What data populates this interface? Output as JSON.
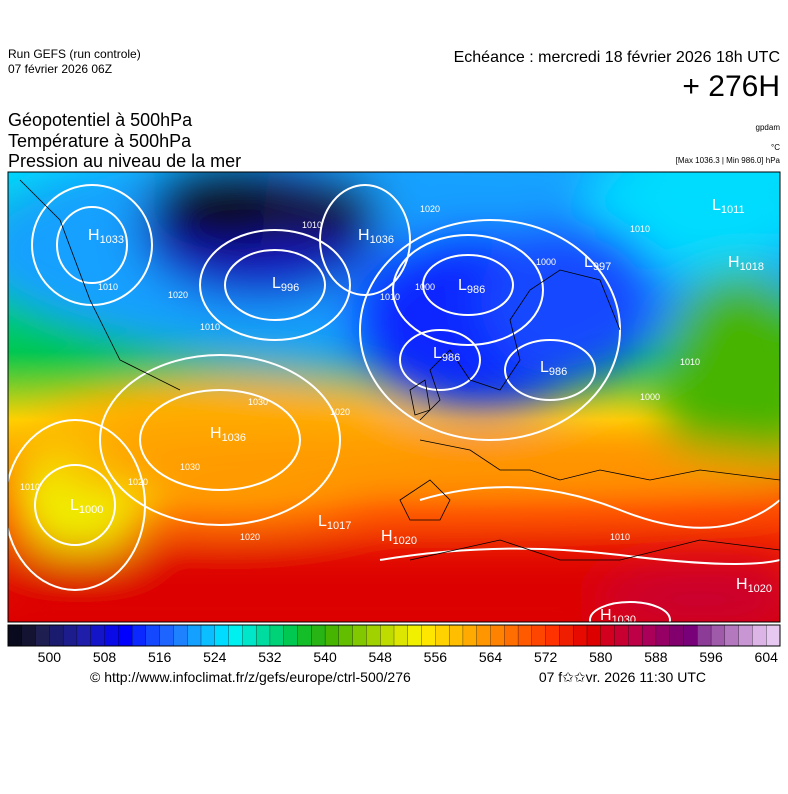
{
  "header": {
    "run": "Run GEFS (run controle)",
    "run_date": "07 février 2026 06Z",
    "valid": "Echéance : mercredi 18 février 2026 18h UTC",
    "lead": "+ 276H"
  },
  "fields": [
    "Géopotentiel à 500hPa",
    "Température à 500hPa",
    "Pression au niveau de la mer"
  ],
  "units": [
    "gpdam",
    "°C",
    "[Max 1036.3 | Min 986.0] hPa"
  ],
  "centers": [
    {
      "letter": "H",
      "value": 1033
    },
    {
      "letter": "L",
      "value": 996
    },
    {
      "letter": "H",
      "value": 1036
    },
    {
      "letter": "L",
      "value": 986
    },
    {
      "letter": "L",
      "value": 997
    },
    {
      "letter": "L",
      "value": 1011
    },
    {
      "letter": "H",
      "value": 1018
    },
    {
      "letter": "L",
      "value": 986
    },
    {
      "letter": "L",
      "value": 986
    },
    {
      "letter": "H",
      "value": 1036
    },
    {
      "letter": "L",
      "value": 1000
    },
    {
      "letter": "L",
      "value": 1017
    },
    {
      "letter": "H",
      "value": 1020
    },
    {
      "letter": "H",
      "value": 1020
    },
    {
      "letter": "H",
      "value": 1030
    }
  ],
  "isobar_labels": [
    1010,
    1020,
    1010,
    1010,
    1020,
    1010,
    1000,
    1010,
    1030,
    1020,
    1030,
    1020,
    1010,
    1020,
    1000,
    1010,
    1010,
    1000
  ],
  "colorbar": {
    "lim": [
      494,
      606
    ],
    "ticks": [
      500,
      508,
      516,
      524,
      532,
      540,
      548,
      556,
      564,
      572,
      580,
      588,
      596,
      604
    ],
    "colors": [
      "#0a0a1e",
      "#141432",
      "#1e1e50",
      "#1a1a6e",
      "#1c1c8c",
      "#1e1eaa",
      "#1414c8",
      "#0a0ae6",
      "#0000ff",
      "#0a28ff",
      "#1448ff",
      "#1e64ff",
      "#1e82ff",
      "#14a0ff",
      "#0abeff",
      "#00dcff",
      "#00f0f0",
      "#00e6c8",
      "#00dca0",
      "#00d278",
      "#00c850",
      "#14be28",
      "#28b414",
      "#46b400",
      "#64be00",
      "#82c800",
      "#a0d200",
      "#bedc00",
      "#dce600",
      "#f0f000",
      "#ffe600",
      "#ffd200",
      "#ffbe00",
      "#ffaa00",
      "#ff9600",
      "#ff8200",
      "#ff6e00",
      "#ff5a00",
      "#ff4600",
      "#ff3200",
      "#f01e00",
      "#e60a00",
      "#dc0000",
      "#d2001e",
      "#c80032",
      "#be0046",
      "#aa005a",
      "#960064",
      "#82006e",
      "#780078",
      "#8c3c96",
      "#a05aaa",
      "#b478be",
      "#c896d2",
      "#dcb4e6",
      "#e6c8f0"
    ]
  },
  "footer": {
    "source": "© http://www.infoclimat.fr/z/gefs/europe/ctrl-500/276",
    "generated": "07 f✩✩vr. 2026 11:30 UTC"
  }
}
